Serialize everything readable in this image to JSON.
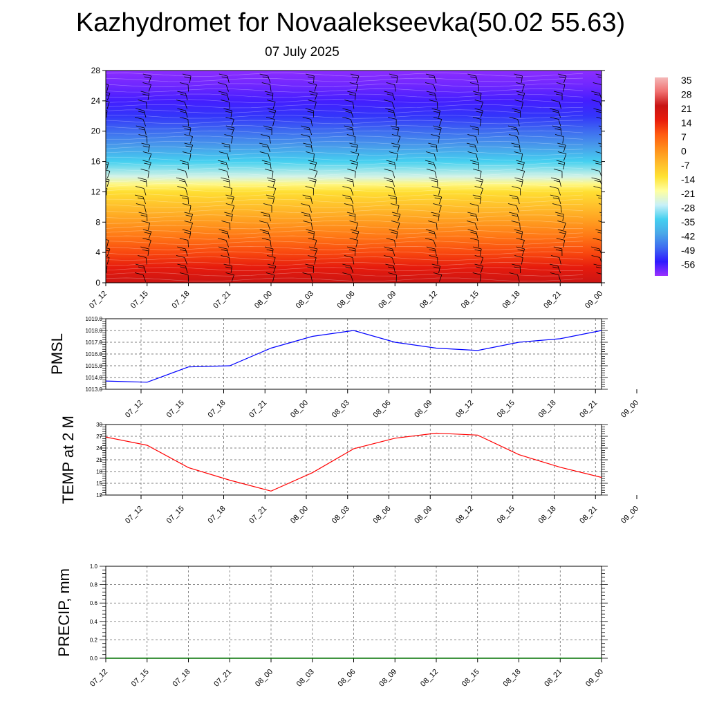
{
  "title": "Kazhydromet for Novaalekseevka(50.02 55.63)",
  "subtitle": "07 July 2025",
  "chart_data": [
    {
      "type": "heatmap",
      "name": "vertical temperature cross-section with wind barbs",
      "x_tick_labels": [
        "07_12",
        "07_15",
        "07_18",
        "07_21",
        "08_00",
        "08_03",
        "08_06",
        "08_09",
        "08_12",
        "08_15",
        "08_18",
        "08_21",
        "09_00"
      ],
      "y_ticks": [
        0,
        4,
        8,
        12,
        16,
        20,
        24,
        28
      ],
      "ylim": [
        0,
        28
      ],
      "colorbar_labels": [
        "35",
        "28",
        "21",
        "14",
        "7",
        "0",
        "-7",
        "-14",
        "-21",
        "-28",
        "-35",
        "-42",
        "-49",
        "-56"
      ],
      "colorbar_range": [
        -63,
        42
      ],
      "profile": {
        "levels": [
          0,
          2,
          4,
          6,
          8,
          10,
          12,
          13,
          14,
          16,
          18,
          20,
          22,
          24,
          26,
          28
        ],
        "temperatures": [
          26,
          20,
          14,
          8,
          2,
          -4,
          -10,
          -16,
          -24,
          -33,
          -42,
          -48,
          -53,
          -57,
          -60,
          -62
        ]
      },
      "colors": [
        "#9b30ff",
        "#2e1aff",
        "#3e6cf0",
        "#4aa8e8",
        "#45d0f0",
        "#c8f0f8",
        "#ffffa0",
        "#ffe233",
        "#ffb92a",
        "#ff8c1a",
        "#ff5a10",
        "#e81c0c",
        "#c81414",
        "#f07070",
        "#f4b8b8"
      ]
    },
    {
      "type": "line",
      "ylabel": "PMSL",
      "categories": [
        "07_12",
        "07_15",
        "07_18",
        "07_21",
        "08_00",
        "08_03",
        "08_06",
        "08_09",
        "08_12",
        "08_15",
        "08_18",
        "08_21",
        "09_00"
      ],
      "values": [
        1013.7,
        1013.6,
        1014.9,
        1015.0,
        1016.5,
        1017.5,
        1018.0,
        1017.0,
        1016.5,
        1016.3,
        1017.0,
        1017.3,
        1018.0
      ],
      "ylim": [
        1013.0,
        1019.0
      ],
      "y_ticks": [
        "1013.0",
        "1014.0",
        "1015.0",
        "1016.0",
        "1017.0",
        "1018.0",
        "1019.0"
      ],
      "color": "#0000ff",
      "grid": true
    },
    {
      "type": "line",
      "ylabel": "TEMP at 2 M",
      "categories": [
        "07_12",
        "07_15",
        "07_18",
        "07_21",
        "08_00",
        "08_03",
        "08_06",
        "08_09",
        "08_12",
        "08_15",
        "08_18",
        "08_21",
        "09_00"
      ],
      "values": [
        26.8,
        24.7,
        19.0,
        15.8,
        13.0,
        17.7,
        23.8,
        26.5,
        27.8,
        27.3,
        22.3,
        19.1,
        16.5
      ],
      "ylim": [
        12,
        30
      ],
      "y_ticks": [
        "12",
        "15",
        "18",
        "21",
        "24",
        "27",
        "30"
      ],
      "color": "#ff0000",
      "grid": true
    },
    {
      "type": "line",
      "ylabel": "PRECIP, mm",
      "categories": [
        "07_12",
        "07_15",
        "07_18",
        "07_21",
        "08_00",
        "08_03",
        "08_06",
        "08_09",
        "08_12",
        "08_15",
        "08_18",
        "08_21",
        "09_00"
      ],
      "values": [
        0,
        0,
        0,
        0,
        0,
        0,
        0,
        0,
        0,
        0,
        0,
        0,
        0
      ],
      "ylim": [
        0.0,
        1.0
      ],
      "y_ticks": [
        "0.0",
        "0.2",
        "0.4",
        "0.6",
        "0.8",
        "1.0"
      ],
      "color": "#007000",
      "grid": true
    }
  ]
}
